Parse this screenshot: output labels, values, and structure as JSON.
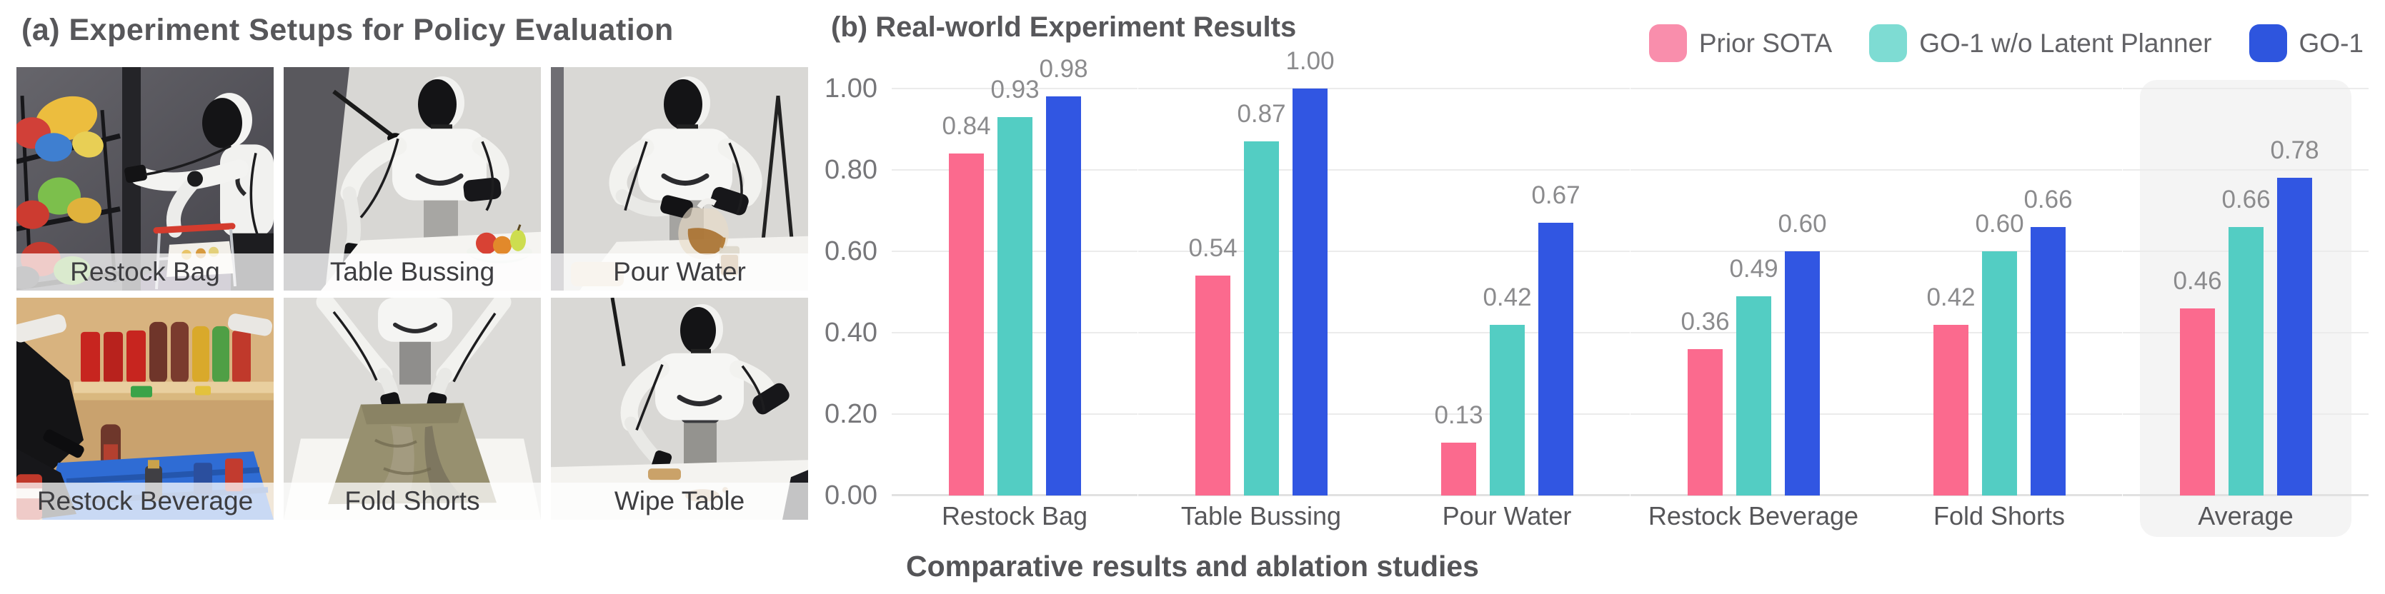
{
  "panel_a": {
    "title": "(a) Experiment Setups for Policy Evaluation",
    "tiles": [
      {
        "label": "Restock Bag"
      },
      {
        "label": "Table Bussing"
      },
      {
        "label": "Pour Water"
      },
      {
        "label": "Restock Beverage"
      },
      {
        "label": "Fold Shorts"
      },
      {
        "label": "Wipe Table"
      }
    ]
  },
  "panel_b": {
    "title": "(b) Real-world Experiment Results",
    "caption": "Comparative results and ablation studies",
    "legend": [
      {
        "label": "Prior SOTA",
        "swatch_color": "#F98EAC"
      },
      {
        "label": "GO-1 w/o Latent Planner",
        "swatch_color": "#7EDCD3"
      },
      {
        "label": "GO-1",
        "swatch_color": "#2E55DE"
      }
    ]
  },
  "chart_data": {
    "type": "bar",
    "title": "(b) Real-world Experiment Results",
    "caption": "Comparative results and ablation studies",
    "categories": [
      "Restock Bag",
      "Table Bussing",
      "Pour Water",
      "Restock Beverage",
      "Fold Shorts",
      "Average"
    ],
    "series": [
      {
        "name": "Prior SOTA",
        "color": "#FB6A8E",
        "values": [
          0.84,
          0.54,
          0.13,
          0.36,
          0.42,
          0.46
        ]
      },
      {
        "name": "GO-1 w/o Latent Planner",
        "color": "#53CDC3",
        "values": [
          0.93,
          0.87,
          0.42,
          0.49,
          0.6,
          0.66
        ]
      },
      {
        "name": "GO-1",
        "color": "#3156E2",
        "values": [
          0.98,
          1.0,
          0.67,
          0.6,
          0.66,
          0.78
        ]
      }
    ],
    "yticks": [
      "0.00",
      "0.20",
      "0.40",
      "0.60",
      "0.80",
      "1.00"
    ],
    "ylim": [
      0,
      1.0
    ],
    "grid": true,
    "grid_style": "segmented-per-category",
    "highlight_category": "Average",
    "legend_position": "top-right",
    "value_labels": true
  }
}
